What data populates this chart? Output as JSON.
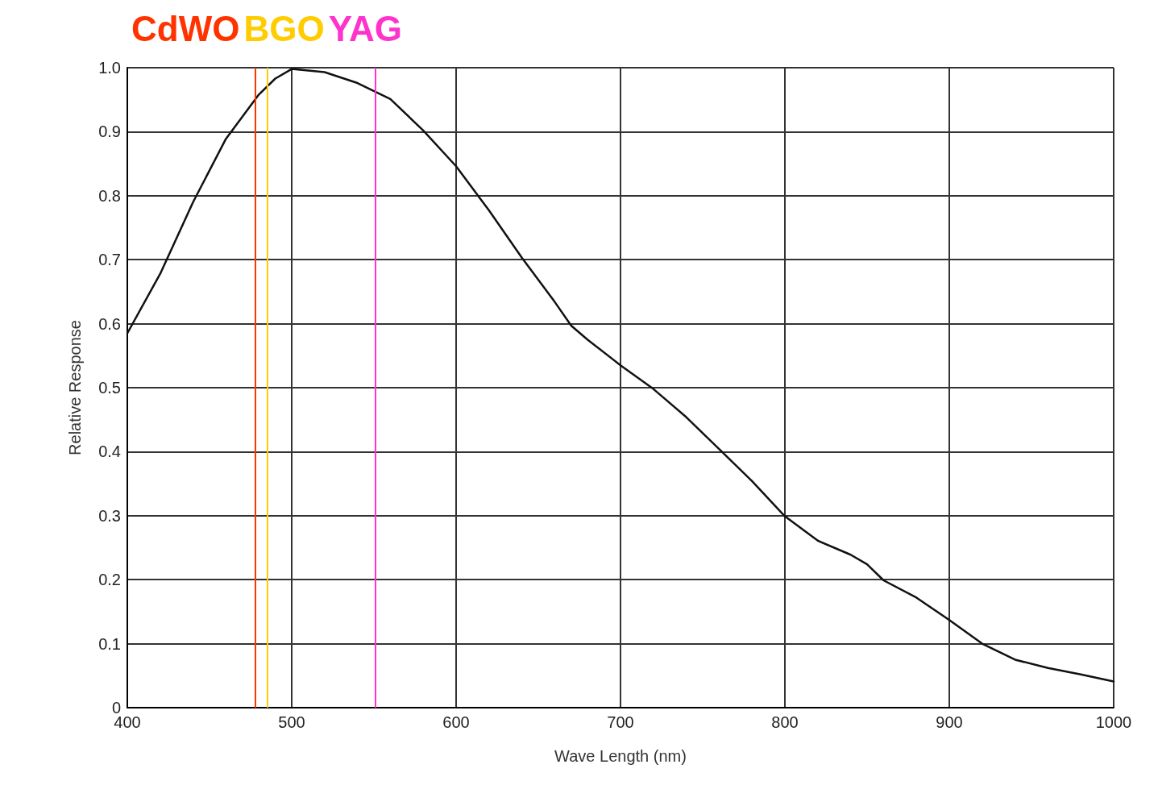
{
  "chart_data": {
    "type": "line",
    "xlabel": "Wave Length (nm)",
    "ylabel": "Relative Response",
    "x": [
      400,
      420,
      440,
      460,
      480,
      490,
      500,
      520,
      540,
      560,
      580,
      600,
      620,
      640,
      660,
      670,
      680,
      700,
      720,
      740,
      760,
      780,
      800,
      820,
      840,
      850,
      860,
      880,
      900,
      920,
      940,
      960,
      980,
      1000
    ],
    "series": [
      {
        "color": "#111111",
        "values": [
          0.585,
          0.678,
          0.79,
          0.889,
          0.958,
          0.983,
          0.998,
          0.993,
          0.976,
          0.951,
          0.902,
          0.846,
          0.777,
          0.703,
          0.634,
          0.597,
          0.575,
          0.535,
          0.498,
          0.454,
          0.404,
          0.354,
          0.299,
          0.261,
          0.239,
          0.224,
          0.199,
          0.172,
          0.137,
          0.1,
          0.075,
          0.062,
          0.052,
          0.041
        ]
      }
    ],
    "xlim": [
      400,
      1000
    ],
    "xticks": [
      400,
      500,
      600,
      700,
      800,
      900,
      1000
    ],
    "ylim": [
      0,
      1
    ],
    "yticks": [
      0,
      0.1,
      0.2,
      0.3,
      0.4,
      0.5,
      0.6,
      0.7,
      0.8,
      0.9,
      {
        "value": 1,
        "label": "1.0"
      }
    ],
    "ref_lines": [
      {
        "axis": "x",
        "value": 478,
        "label": "CdWO",
        "color": "#ff3300"
      },
      {
        "axis": "x",
        "value": 485,
        "label": "BGO",
        "color": "#ffcc00"
      },
      {
        "axis": "x",
        "value": 551,
        "label": "YAG",
        "color": "#ff33cc"
      }
    ],
    "grid": true,
    "marker": "none",
    "line_style": "solid"
  }
}
